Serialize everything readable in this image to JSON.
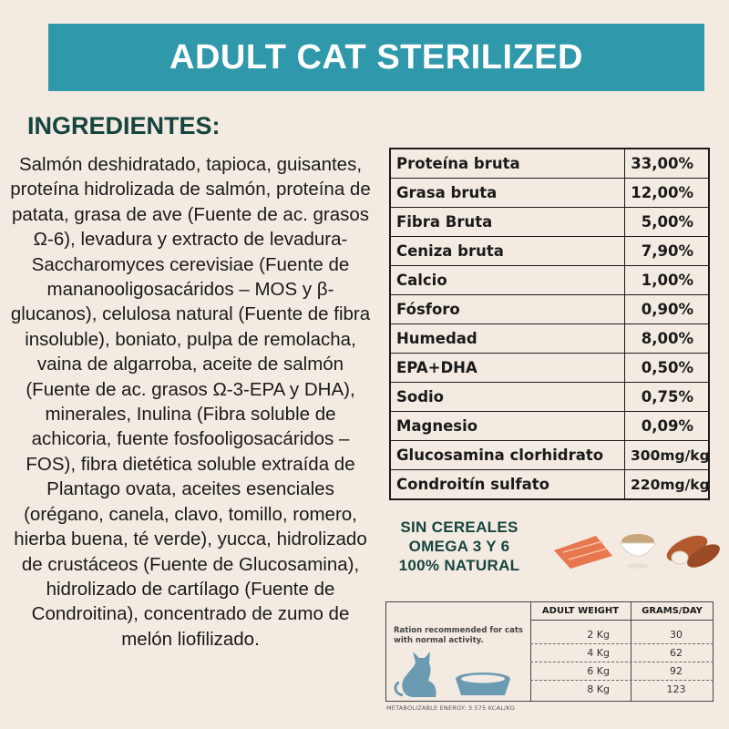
{
  "header": {
    "title": "ADULT CAT STERILIZED"
  },
  "ingredients": {
    "title": "INGREDIENTES:",
    "text": "Salmón deshidratado, tapioca, guisantes, proteína hidrolizada de salmón, proteína de patata, grasa de ave (Fuente de ac. grasos Ω-6), levadura y extracto de levadura-Saccharomyces cerevisiae (Fuente de mananooligosacáridos – MOS y β-glucanos), celulosa natural (Fuente de fibra insoluble), boniato, pulpa de remolacha, vaina de algarroba, aceite de salmón (Fuente de ac. grasos Ω-3-EPA y DHA), minerales, Inulina (Fibra soluble de achicoria, fuente fosfooligosacáridos – FOS), fibra dietética soluble extraída de Plantago ovata, aceites esenciales (orégano, canela, clavo, tomillo, romero, hierba buena, té verde), yucca, hidrolizado de crustáceos (Fuente de Glucosamina), hidrolizado de cartílago (Fuente de Condroitina), concentrado de zumo de melón liofilizado."
  },
  "analysis": [
    {
      "name": "Proteína bruta",
      "value": "33,00%"
    },
    {
      "name": "Grasa bruta",
      "value": "12,00%"
    },
    {
      "name": "Fibra Bruta",
      "value": "5,00%"
    },
    {
      "name": "Ceniza bruta",
      "value": "7,90%"
    },
    {
      "name": "Calcio",
      "value": "1,00%"
    },
    {
      "name": "Fósforo",
      "value": "0,90%"
    },
    {
      "name": "Humedad",
      "value": "8,00%"
    },
    {
      "name": "EPA+DHA",
      "value": "0,50%"
    },
    {
      "name": "Sodio",
      "value": "0,75%"
    },
    {
      "name": "Magnesio",
      "value": "0,09%"
    },
    {
      "name": "Glucosamina clorhidrato",
      "value": "300mg/kg"
    },
    {
      "name": "Condroitín sulfato",
      "value": "220mg/kg"
    }
  ],
  "claims": [
    "SIN CEREALES",
    "OMEGA 3 Y 6",
    "100% NATURAL"
  ],
  "food_icons": [
    "salmon-icon",
    "cereal-bowl-icon",
    "sweet-potato-icon"
  ],
  "ration": {
    "note": "Ration recommended for cats with normal activity.",
    "headers": {
      "weight": "ADULT WEIGHT",
      "grams": "GRAMS/DAY"
    },
    "rows": [
      {
        "weight": "2 Kg",
        "grams": "30"
      },
      {
        "weight": "4 Kg",
        "grams": "62"
      },
      {
        "weight": "6 Kg",
        "grams": "92"
      },
      {
        "weight": "8 Kg",
        "grams": "123"
      }
    ],
    "icons": [
      "cat-icon",
      "food-bowl-icon"
    ]
  },
  "energy": "METABOLIZABLE ENERGY: 3.575 KCAL/KG",
  "colors": {
    "banner": "#2f98aa",
    "accent_text": "#16443f",
    "background": "#f3ebe1",
    "icon_blue": "#6b9bb2"
  }
}
